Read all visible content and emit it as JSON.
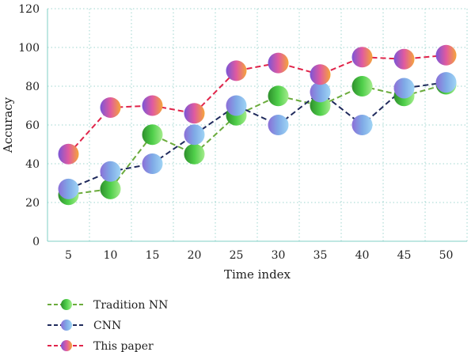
{
  "chart_data": {
    "type": "line",
    "xlabel": "Time index",
    "ylabel": "Accuracy",
    "x": [
      5,
      10,
      15,
      20,
      25,
      30,
      35,
      40,
      45,
      50
    ],
    "xticks": [
      "5",
      "10",
      "15",
      "20",
      "25",
      "30",
      "35",
      "40",
      "45",
      "50"
    ],
    "ylim": [
      0,
      120
    ],
    "yticks": [
      "0",
      "20",
      "40",
      "60",
      "80",
      "100",
      "120"
    ],
    "grid": true,
    "legend_placement": "bottom-left",
    "series": [
      {
        "name": "Tradition NN",
        "values": [
          24,
          27,
          55,
          45,
          65,
          75,
          70,
          80,
          75,
          81
        ],
        "line_color": "#6bab3c",
        "marker_colors": [
          "#2e8f2c",
          "#4fcf4a",
          "#a4ec8c"
        ]
      },
      {
        "name": "CNN",
        "values": [
          27,
          36,
          40,
          55,
          70,
          60,
          77,
          60,
          79,
          82
        ],
        "line_color": "#1f2a5c",
        "marker_colors": [
          "#8b6fd8",
          "#7fa9e6",
          "#9fd4f5"
        ]
      },
      {
        "name": "This paper",
        "values": [
          45,
          69,
          70,
          66,
          88,
          92,
          86,
          95,
          94,
          96
        ],
        "line_color": "#e0244a",
        "marker_colors": [
          "#7a55d6",
          "#e05aa0",
          "#f5a53a"
        ]
      }
    ]
  }
}
